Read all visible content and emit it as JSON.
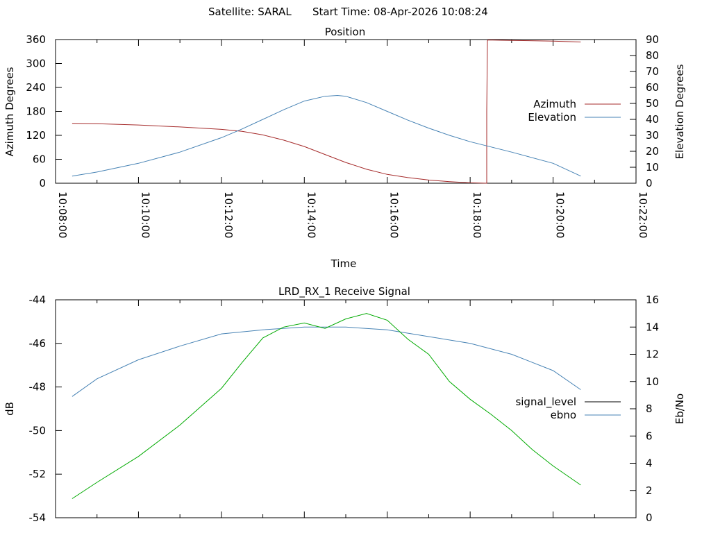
{
  "header": {
    "satellite": "Satellite: SARAL",
    "start_time": "Start Time: 08-Apr-2026 10:08:24"
  },
  "chart_data": [
    {
      "type": "line",
      "title": "Position",
      "xlabel": "Time",
      "ylabel": "Azimuth Degrees",
      "y2label": "Elevation Degrees",
      "xlim": [
        "10:08:00",
        "10:22:00"
      ],
      "x_ticks": [
        "10:08:00",
        "10:10:00",
        "10:12:00",
        "10:14:00",
        "10:16:00",
        "10:18:00",
        "10:20:00",
        "10:22:00"
      ],
      "ylim": [
        0,
        360
      ],
      "y_ticks": [
        "0",
        "60",
        "120",
        "180",
        "240",
        "300",
        "360"
      ],
      "y2lim": [
        0,
        90
      ],
      "y2_ticks": [
        "0",
        "10",
        "20",
        "30",
        "40",
        "50",
        "60",
        "70",
        "80",
        "90"
      ],
      "legend_position": "right",
      "series": [
        {
          "name": "Azimuth",
          "axis": "y",
          "color": "#a52a2a",
          "x": [
            "10:08:24",
            "10:09:00",
            "10:10:00",
            "10:11:00",
            "10:12:00",
            "10:12:30",
            "10:13:00",
            "10:13:30",
            "10:14:00",
            "10:14:30",
            "10:15:00",
            "10:15:30",
            "10:16:00",
            "10:16:30",
            "10:17:00",
            "10:17:30",
            "10:18:00",
            "10:18:24",
            "10:18:24",
            "10:18:25",
            "10:18:26",
            "10:19:00",
            "10:20:00",
            "10:20:40"
          ],
          "values": [
            150,
            149,
            146,
            141,
            135,
            130,
            121,
            108,
            92,
            72,
            52,
            35,
            22,
            14,
            8,
            4,
            1,
            0,
            180,
            357,
            359,
            358,
            356,
            354
          ]
        },
        {
          "name": "Elevation",
          "axis": "y2",
          "color": "#4682b4",
          "x": [
            "10:08:24",
            "10:09:00",
            "10:10:00",
            "10:11:00",
            "10:12:00",
            "10:12:30",
            "10:13:00",
            "10:13:30",
            "10:14:00",
            "10:14:30",
            "10:14:48",
            "10:15:00",
            "10:15:30",
            "10:16:00",
            "10:16:30",
            "10:17:00",
            "10:17:30",
            "10:18:00",
            "10:19:00",
            "10:20:00",
            "10:20:40"
          ],
          "values": [
            4.5,
            7,
            12.5,
            19.5,
            28.5,
            34,
            40,
            46,
            51.5,
            54.5,
            55,
            54.5,
            50.5,
            45,
            39.5,
            34.5,
            30,
            26,
            19.5,
            12.5,
            4.5
          ]
        }
      ]
    },
    {
      "type": "line",
      "title": "LRD_RX_1 Receive Signal",
      "xlabel": "",
      "ylabel": "dB",
      "y2label": "Eb/No",
      "xlim": [
        "10:08:00",
        "10:22:00"
      ],
      "ylim": [
        -54,
        -44
      ],
      "y_ticks": [
        "-44",
        "-46",
        "-48",
        "-50",
        "-52",
        "-54"
      ],
      "y2lim": [
        0,
        16
      ],
      "y2_ticks": [
        "0",
        "2",
        "4",
        "6",
        "8",
        "10",
        "12",
        "14",
        "16"
      ],
      "legend_position": "right",
      "series": [
        {
          "name": "signal_level",
          "axis": "y",
          "color": "#000000",
          "x": [],
          "values": []
        },
        {
          "name": "ebno",
          "axis": "y2",
          "color": "#4682b4",
          "x": [
            "10:08:24",
            "10:09:00",
            "10:10:00",
            "10:11:00",
            "10:12:00",
            "10:13:00",
            "10:14:00",
            "10:15:00",
            "10:16:00",
            "10:17:00",
            "10:18:00",
            "10:19:00",
            "10:20:00",
            "10:20:40"
          ],
          "values": [
            8.9,
            10.2,
            11.6,
            12.6,
            13.5,
            13.8,
            14.0,
            14.0,
            13.8,
            13.3,
            12.8,
            12.0,
            10.8,
            9.4
          ]
        },
        {
          "name": "",
          "axis": "y2",
          "color": "#00aa00",
          "x": [
            "10:08:24",
            "10:09:00",
            "10:10:00",
            "10:11:00",
            "10:12:00",
            "10:12:30",
            "10:13:00",
            "10:13:30",
            "10:14:00",
            "10:14:30",
            "10:15:00",
            "10:15:30",
            "10:16:00",
            "10:16:30",
            "10:17:00",
            "10:17:30",
            "10:18:00",
            "10:18:30",
            "10:19:00",
            "10:19:30",
            "10:20:00",
            "10:20:40"
          ],
          "values": [
            1.4,
            2.6,
            4.5,
            6.8,
            9.5,
            11.4,
            13.2,
            14.0,
            14.3,
            13.9,
            14.6,
            15.0,
            14.5,
            13.1,
            12.0,
            10.0,
            8.7,
            7.6,
            6.4,
            5.0,
            3.8,
            2.4
          ]
        }
      ]
    }
  ]
}
